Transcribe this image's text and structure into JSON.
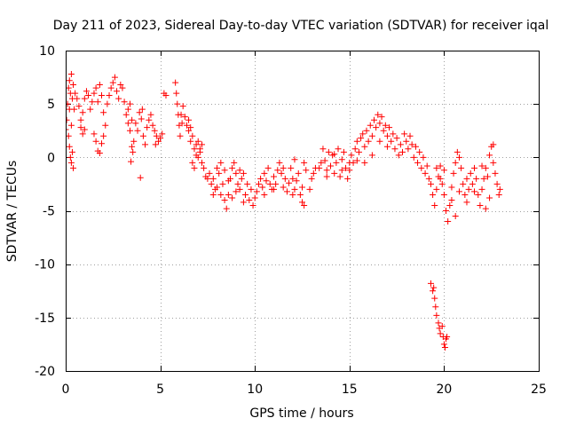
{
  "chart_data": {
    "type": "scatter",
    "title": "Day 211 of 2023, Sidereal Day-to-day VTEC variation (SDTVAR) for receiver iqal",
    "xlabel": "GPS time / hours",
    "ylabel": "SDTVAR / TECUs",
    "xlim": [
      0,
      25
    ],
    "ylim": [
      -20,
      10
    ],
    "xticks": [
      0,
      5,
      10,
      15,
      20,
      25
    ],
    "yticks": [
      -20,
      -15,
      -10,
      -5,
      0,
      5,
      10
    ],
    "grid": true,
    "marker": "plus",
    "color": "#ff0000",
    "series": [
      {
        "name": "SDTVAR",
        "points": [
          [
            0.0,
            2.6
          ],
          [
            0.05,
            3.5
          ],
          [
            0.1,
            5.0
          ],
          [
            0.15,
            6.5
          ],
          [
            0.2,
            7.2
          ],
          [
            0.25,
            6.0
          ],
          [
            0.3,
            7.8
          ],
          [
            0.35,
            5.5
          ],
          [
            0.4,
            6.8
          ],
          [
            0.45,
            4.5
          ],
          [
            0.2,
            1.0
          ],
          [
            0.25,
            0.0
          ],
          [
            0.3,
            -0.5
          ],
          [
            0.35,
            0.5
          ],
          [
            0.4,
            -1.0
          ],
          [
            0.15,
            2.0
          ],
          [
            0.2,
            4.5
          ],
          [
            0.3,
            3.0
          ],
          [
            0.5,
            6.0
          ],
          [
            0.6,
            5.5
          ],
          [
            0.7,
            4.8
          ],
          [
            0.8,
            3.5
          ],
          [
            0.9,
            4.2
          ],
          [
            1.0,
            5.5
          ],
          [
            1.1,
            6.2
          ],
          [
            1.2,
            5.8
          ],
          [
            1.3,
            4.5
          ],
          [
            1.4,
            5.2
          ],
          [
            1.5,
            6.0
          ],
          [
            1.6,
            6.5
          ],
          [
            1.7,
            5.2
          ],
          [
            1.8,
            6.8
          ],
          [
            1.9,
            5.8
          ],
          [
            2.0,
            4.2
          ],
          [
            2.1,
            3.0
          ],
          [
            0.8,
            2.8
          ],
          [
            0.9,
            2.2
          ],
          [
            1.0,
            2.6
          ],
          [
            1.5,
            2.2
          ],
          [
            1.6,
            1.5
          ],
          [
            1.7,
            0.6
          ],
          [
            1.8,
            0.4
          ],
          [
            1.9,
            1.3
          ],
          [
            2.0,
            2.0
          ],
          [
            2.2,
            5.0
          ],
          [
            2.3,
            5.8
          ],
          [
            2.4,
            6.5
          ],
          [
            2.5,
            7.0
          ],
          [
            2.6,
            7.5
          ],
          [
            2.7,
            6.2
          ],
          [
            2.8,
            5.5
          ],
          [
            2.9,
            6.8
          ],
          [
            3.0,
            6.5
          ],
          [
            3.1,
            5.2
          ],
          [
            3.2,
            4.0
          ],
          [
            3.3,
            3.2
          ],
          [
            3.4,
            2.5
          ],
          [
            3.5,
            1.0
          ],
          [
            3.55,
            0.5
          ],
          [
            3.6,
            1.5
          ],
          [
            3.5,
            3.5
          ],
          [
            3.4,
            5.0
          ],
          [
            3.3,
            4.5
          ],
          [
            3.45,
            -0.4
          ],
          [
            3.7,
            3.2
          ],
          [
            3.8,
            2.5
          ],
          [
            3.9,
            4.2
          ],
          [
            4.0,
            3.6
          ],
          [
            4.1,
            2.0
          ],
          [
            4.2,
            1.2
          ],
          [
            4.3,
            2.8
          ],
          [
            4.4,
            3.5
          ],
          [
            4.5,
            4.0
          ],
          [
            4.6,
            3.0
          ],
          [
            4.7,
            2.5
          ],
          [
            4.8,
            2.0
          ],
          [
            4.9,
            1.5
          ],
          [
            5.0,
            1.8
          ],
          [
            4.75,
            1.2
          ],
          [
            5.1,
            2.2
          ],
          [
            3.95,
            -1.9
          ],
          [
            4.05,
            4.5
          ],
          [
            5.2,
            6.0
          ],
          [
            5.3,
            5.8
          ],
          [
            5.8,
            7.0
          ],
          [
            5.85,
            6.0
          ],
          [
            5.9,
            5.0
          ],
          [
            5.95,
            4.0
          ],
          [
            6.0,
            3.0
          ],
          [
            6.05,
            2.0
          ],
          [
            6.1,
            4.0
          ],
          [
            6.15,
            3.2
          ],
          [
            6.2,
            4.8
          ],
          [
            6.3,
            3.8
          ],
          [
            6.4,
            3.0
          ],
          [
            6.5,
            2.5
          ],
          [
            6.6,
            1.5
          ],
          [
            6.7,
            2.0
          ],
          [
            6.8,
            0.8
          ],
          [
            6.9,
            1.2
          ],
          [
            7.0,
            0.0
          ],
          [
            7.1,
            0.5
          ],
          [
            7.2,
            -0.5
          ],
          [
            6.5,
            3.5
          ],
          [
            6.6,
            2.8
          ],
          [
            6.7,
            -0.5
          ],
          [
            6.8,
            -1.0
          ],
          [
            6.9,
            0.2
          ],
          [
            7.0,
            1.5
          ],
          [
            7.1,
            0.8
          ],
          [
            7.2,
            1.2
          ],
          [
            7.3,
            -1.0
          ],
          [
            7.4,
            -1.8
          ],
          [
            7.5,
            -2.0
          ],
          [
            7.6,
            -1.5
          ],
          [
            7.7,
            -2.5
          ],
          [
            7.8,
            -2.0
          ],
          [
            7.9,
            -3.0
          ],
          [
            8.0,
            -2.8
          ],
          [
            8.1,
            -1.5
          ],
          [
            8.2,
            -3.5
          ],
          [
            8.3,
            -2.5
          ],
          [
            8.4,
            -4.0
          ],
          [
            8.5,
            -4.8
          ],
          [
            8.6,
            -3.5
          ],
          [
            8.7,
            -2.0
          ],
          [
            8.8,
            -1.0
          ],
          [
            8.9,
            -0.5
          ],
          [
            9.0,
            -1.5
          ],
          [
            9.1,
            -2.5
          ],
          [
            9.2,
            -3.0
          ],
          [
            9.3,
            -2.0
          ],
          [
            9.4,
            -1.5
          ],
          [
            9.5,
            -3.5
          ],
          [
            9.6,
            -2.5
          ],
          [
            9.7,
            -4.0
          ],
          [
            9.8,
            -3.0
          ],
          [
            9.9,
            -4.5
          ],
          [
            10.0,
            -3.8
          ],
          [
            7.8,
            -3.5
          ],
          [
            8.0,
            -1.0
          ],
          [
            8.2,
            -0.5
          ],
          [
            8.4,
            -1.2
          ],
          [
            8.6,
            -2.2
          ],
          [
            8.8,
            -3.8
          ],
          [
            9.0,
            -3.2
          ],
          [
            9.2,
            -1.2
          ],
          [
            9.4,
            -4.2
          ],
          [
            10.1,
            -3.2
          ],
          [
            10.2,
            -2.5
          ],
          [
            10.3,
            -2.0
          ],
          [
            10.4,
            -2.8
          ],
          [
            10.5,
            -1.5
          ],
          [
            10.6,
            -2.2
          ],
          [
            10.7,
            -1.0
          ],
          [
            10.8,
            -2.5
          ],
          [
            10.9,
            -3.0
          ],
          [
            11.0,
            -1.8
          ],
          [
            11.1,
            -2.5
          ],
          [
            11.2,
            -1.2
          ],
          [
            11.3,
            -0.5
          ],
          [
            11.4,
            -1.5
          ],
          [
            11.5,
            -2.8
          ],
          [
            11.6,
            -2.0
          ],
          [
            11.7,
            -3.2
          ],
          [
            11.8,
            -2.4
          ],
          [
            11.9,
            -1.0
          ],
          [
            12.0,
            -2.0
          ],
          [
            12.1,
            -3.0
          ],
          [
            12.2,
            -2.2
          ],
          [
            12.3,
            -1.5
          ],
          [
            12.4,
            -3.5
          ],
          [
            12.5,
            -2.8
          ],
          [
            12.6,
            -0.5
          ],
          [
            12.7,
            -1.2
          ],
          [
            10.5,
            -3.5
          ],
          [
            11.0,
            -3.0
          ],
          [
            11.5,
            -1.0
          ],
          [
            12.0,
            -3.5
          ],
          [
            12.5,
            -4.2
          ],
          [
            12.6,
            -4.5
          ],
          [
            12.1,
            -0.2
          ],
          [
            12.9,
            -3.0
          ],
          [
            13.0,
            -2.0
          ],
          [
            13.1,
            -1.5
          ],
          [
            13.2,
            -1.0
          ],
          [
            13.4,
            -1.0
          ],
          [
            13.5,
            -0.5
          ],
          [
            13.6,
            0.8
          ],
          [
            13.7,
            -0.3
          ],
          [
            13.8,
            -1.2
          ],
          [
            13.9,
            0.5
          ],
          [
            14.0,
            -0.8
          ],
          [
            14.1,
            0.2
          ],
          [
            14.2,
            -1.5
          ],
          [
            14.3,
            -0.5
          ],
          [
            14.4,
            0.8
          ],
          [
            14.5,
            -1.8
          ],
          [
            14.6,
            -0.2
          ],
          [
            14.7,
            0.5
          ],
          [
            14.8,
            -1.0
          ],
          [
            14.9,
            -2.0
          ],
          [
            15.0,
            -1.2
          ],
          [
            15.1,
            0.2
          ],
          [
            15.2,
            -0.5
          ],
          [
            15.3,
            0.8
          ],
          [
            15.4,
            1.5
          ],
          [
            15.5,
            0.5
          ],
          [
            15.6,
            1.8
          ],
          [
            15.7,
            2.2
          ],
          [
            15.8,
            1.0
          ],
          [
            15.9,
            2.5
          ],
          [
            16.0,
            1.5
          ],
          [
            16.1,
            3.0
          ],
          [
            16.2,
            2.0
          ],
          [
            16.3,
            3.5
          ],
          [
            16.4,
            2.8
          ],
          [
            16.5,
            4.0
          ],
          [
            16.6,
            3.2
          ],
          [
            16.7,
            3.8
          ],
          [
            16.8,
            2.5
          ],
          [
            16.9,
            3.0
          ],
          [
            13.8,
            -1.8
          ],
          [
            14.2,
            0.3
          ],
          [
            14.6,
            -1.2
          ],
          [
            15.0,
            -0.5
          ],
          [
            15.4,
            -0.3
          ],
          [
            15.8,
            -0.5
          ],
          [
            16.2,
            0.2
          ],
          [
            16.6,
            1.5
          ],
          [
            17.0,
            1.0
          ],
          [
            17.0,
            2.0
          ],
          [
            17.1,
            2.8
          ],
          [
            17.2,
            1.5
          ],
          [
            17.3,
            2.2
          ],
          [
            17.4,
            0.8
          ],
          [
            17.5,
            1.8
          ],
          [
            17.6,
            0.2
          ],
          [
            17.7,
            1.2
          ],
          [
            17.8,
            0.5
          ],
          [
            17.9,
            2.2
          ],
          [
            18.0,
            1.5
          ],
          [
            18.1,
            0.8
          ],
          [
            18.2,
            2.0
          ],
          [
            18.3,
            1.2
          ],
          [
            18.4,
            0.0
          ],
          [
            18.5,
            1.0
          ],
          [
            18.6,
            -0.5
          ],
          [
            18.7,
            0.5
          ],
          [
            18.8,
            -1.0
          ],
          [
            18.9,
            0.0
          ],
          [
            19.0,
            -1.5
          ],
          [
            19.1,
            -0.8
          ],
          [
            19.2,
            -2.0
          ],
          [
            19.3,
            -2.5
          ],
          [
            19.4,
            -3.5
          ],
          [
            19.5,
            -4.5
          ],
          [
            19.6,
            -3.0
          ],
          [
            19.7,
            -1.8
          ],
          [
            19.8,
            -0.8
          ],
          [
            19.9,
            -2.5
          ],
          [
            20.0,
            -3.5
          ],
          [
            20.1,
            -5.0
          ],
          [
            20.2,
            -6.0
          ],
          [
            20.3,
            -4.5
          ],
          [
            20.4,
            -2.8
          ],
          [
            20.5,
            -1.5
          ],
          [
            20.6,
            -0.5
          ],
          [
            20.7,
            0.5
          ],
          [
            20.8,
            0.0
          ],
          [
            20.9,
            -1.0
          ],
          [
            21.0,
            -2.5
          ],
          [
            21.1,
            -3.5
          ],
          [
            21.2,
            -2.0
          ],
          [
            21.3,
            -3.0
          ],
          [
            21.4,
            -1.5
          ],
          [
            21.5,
            -2.5
          ],
          [
            21.6,
            -1.0
          ],
          [
            21.7,
            -2.0
          ],
          [
            21.8,
            -3.5
          ],
          [
            21.9,
            -4.5
          ],
          [
            22.0,
            -3.0
          ],
          [
            22.1,
            -2.0
          ],
          [
            22.2,
            -1.0
          ],
          [
            22.3,
            -1.8
          ],
          [
            22.4,
            0.2
          ],
          [
            22.5,
            1.0
          ],
          [
            22.6,
            -0.5
          ],
          [
            22.7,
            -1.5
          ],
          [
            22.8,
            -2.5
          ],
          [
            22.9,
            -3.5
          ],
          [
            22.95,
            -3.0
          ],
          [
            19.6,
            -1.0
          ],
          [
            19.8,
            -2.0
          ],
          [
            20.0,
            -1.2
          ],
          [
            20.4,
            -4.0
          ],
          [
            20.6,
            -5.5
          ],
          [
            20.8,
            -3.2
          ],
          [
            21.2,
            -4.2
          ],
          [
            21.6,
            -3.2
          ],
          [
            22.0,
            -0.8
          ],
          [
            22.2,
            -4.8
          ],
          [
            22.4,
            -3.8
          ],
          [
            22.6,
            1.2
          ],
          [
            19.3,
            -11.8
          ],
          [
            19.4,
            -12.5
          ],
          [
            19.5,
            -13.2
          ],
          [
            19.55,
            -14.0
          ],
          [
            19.6,
            -14.8
          ],
          [
            19.7,
            -15.5
          ],
          [
            19.75,
            -16.0
          ],
          [
            19.8,
            -16.5
          ],
          [
            19.9,
            -15.8
          ],
          [
            19.95,
            -16.8
          ],
          [
            20.0,
            -17.5
          ],
          [
            20.05,
            -17.8
          ],
          [
            20.1,
            -17.0
          ],
          [
            20.15,
            -16.8
          ],
          [
            19.45,
            -12.2
          ]
        ]
      }
    ]
  }
}
